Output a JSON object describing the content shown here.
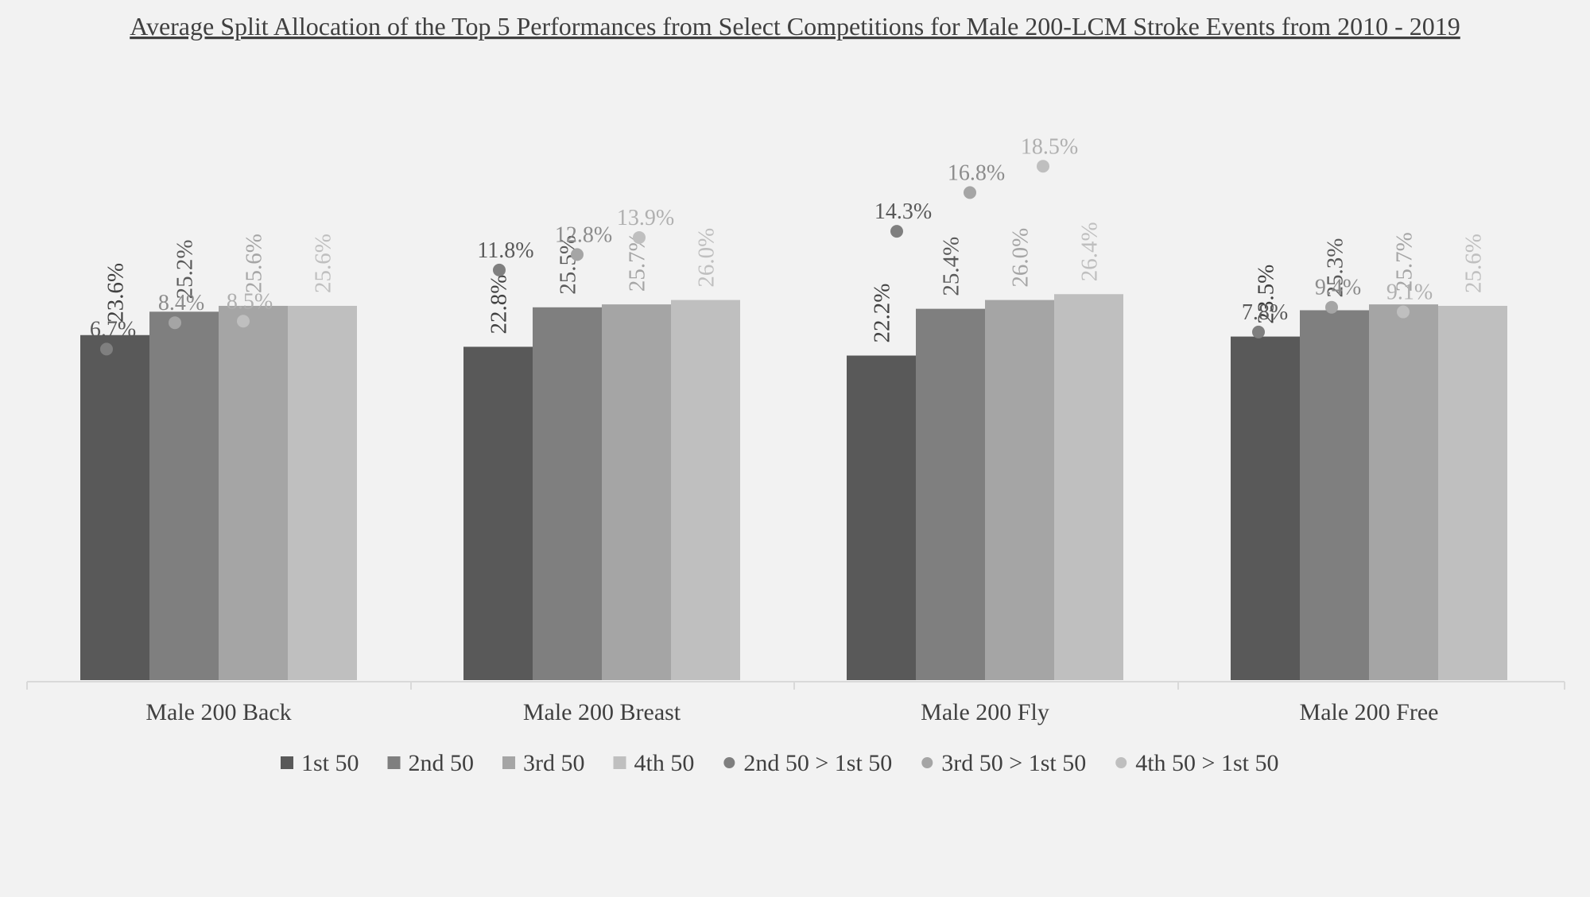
{
  "chart_data": {
    "type": "bar",
    "title": "Average Split Allocation of the Top 5 Performances from Select Competitions for Male 200-LCM Stroke Events from 2010 - 2019",
    "xlabel": "",
    "ylabel": "",
    "categories": [
      "Male 200 Back",
      "Male 200 Breast",
      "Male 200 Fly",
      "Male 200 Free"
    ],
    "series": [
      {
        "name": "1st 50",
        "kind": "bar",
        "color": "#595959",
        "values": [
          23.6,
          22.8,
          22.2,
          23.5
        ],
        "labels": [
          "23.6%",
          "22.8%",
          "22.2%",
          "23.5%"
        ]
      },
      {
        "name": "2nd 50",
        "kind": "bar",
        "color": "#7f7f7f",
        "values": [
          25.2,
          25.5,
          25.4,
          25.3
        ],
        "labels": [
          "25.2%",
          "25.5%",
          "25.4%",
          "25.3%"
        ]
      },
      {
        "name": "3rd 50",
        "kind": "bar",
        "color": "#a5a5a5",
        "values": [
          25.6,
          25.7,
          26.0,
          25.7
        ],
        "labels": [
          "25.6%",
          "25.7%",
          "26.0%",
          "25.7%"
        ]
      },
      {
        "name": "4th 50",
        "kind": "bar",
        "color": "#bfbfbf",
        "values": [
          25.6,
          26.0,
          26.4,
          25.6
        ],
        "labels": [
          "25.6%",
          "26.0%",
          "26.4%",
          "25.6%"
        ]
      },
      {
        "name": "2nd 50 > 1st 50",
        "kind": "scatter",
        "color": "#7f7f7f",
        "label_color": "#595959",
        "values": [
          6.7,
          11.8,
          14.3,
          7.8
        ],
        "labels": [
          "6.7%",
          "11.8%",
          "14.3%",
          "7.8%"
        ]
      },
      {
        "name": "3rd 50 > 1st 50",
        "kind": "scatter",
        "color": "#a5a5a5",
        "label_color": "#8c8c8c",
        "values": [
          8.4,
          12.8,
          16.8,
          9.4
        ],
        "labels": [
          "8.4%",
          "12.8%",
          "16.8%",
          "9.4%"
        ]
      },
      {
        "name": "4th 50 > 1st 50",
        "kind": "scatter",
        "color": "#bfbfbf",
        "label_color": "#b0b0b0",
        "values": [
          8.5,
          13.9,
          18.5,
          9.1
        ],
        "labels": [
          "8.5%",
          "13.9%",
          "18.5%",
          "9.1%"
        ]
      }
    ],
    "legend_position": "bottom",
    "grid": false,
    "colors": {
      "background": "#f2f2f2",
      "axis": "#d9d9d9",
      "text": "#404040"
    }
  }
}
